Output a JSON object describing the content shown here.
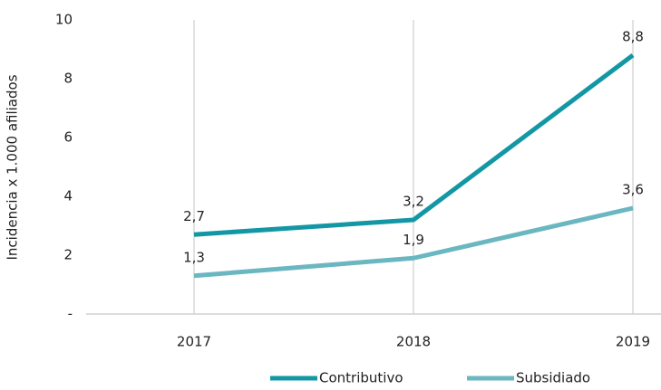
{
  "chart_data": {
    "type": "line",
    "categories": [
      "2017",
      "2018",
      "2019"
    ],
    "series": [
      {
        "name": "Contributivo",
        "color": "#1397a5",
        "values": [
          2.7,
          3.2,
          8.8
        ],
        "value_labels": [
          "2,7",
          "3,2",
          "8,8"
        ]
      },
      {
        "name": "Subsidiado",
        "color": "#6ab7c1",
        "values": [
          1.3,
          1.9,
          3.6
        ],
        "value_labels": [
          "1,3",
          "1,9",
          "3,6"
        ]
      }
    ],
    "y_label": "Incidencia x 1.000 afiliados",
    "ylim": [
      0,
      10
    ],
    "yticks": [
      {
        "value": 0,
        "label": "-"
      },
      2,
      4,
      6,
      8,
      10
    ],
    "grid": true,
    "legend": "bottom"
  }
}
